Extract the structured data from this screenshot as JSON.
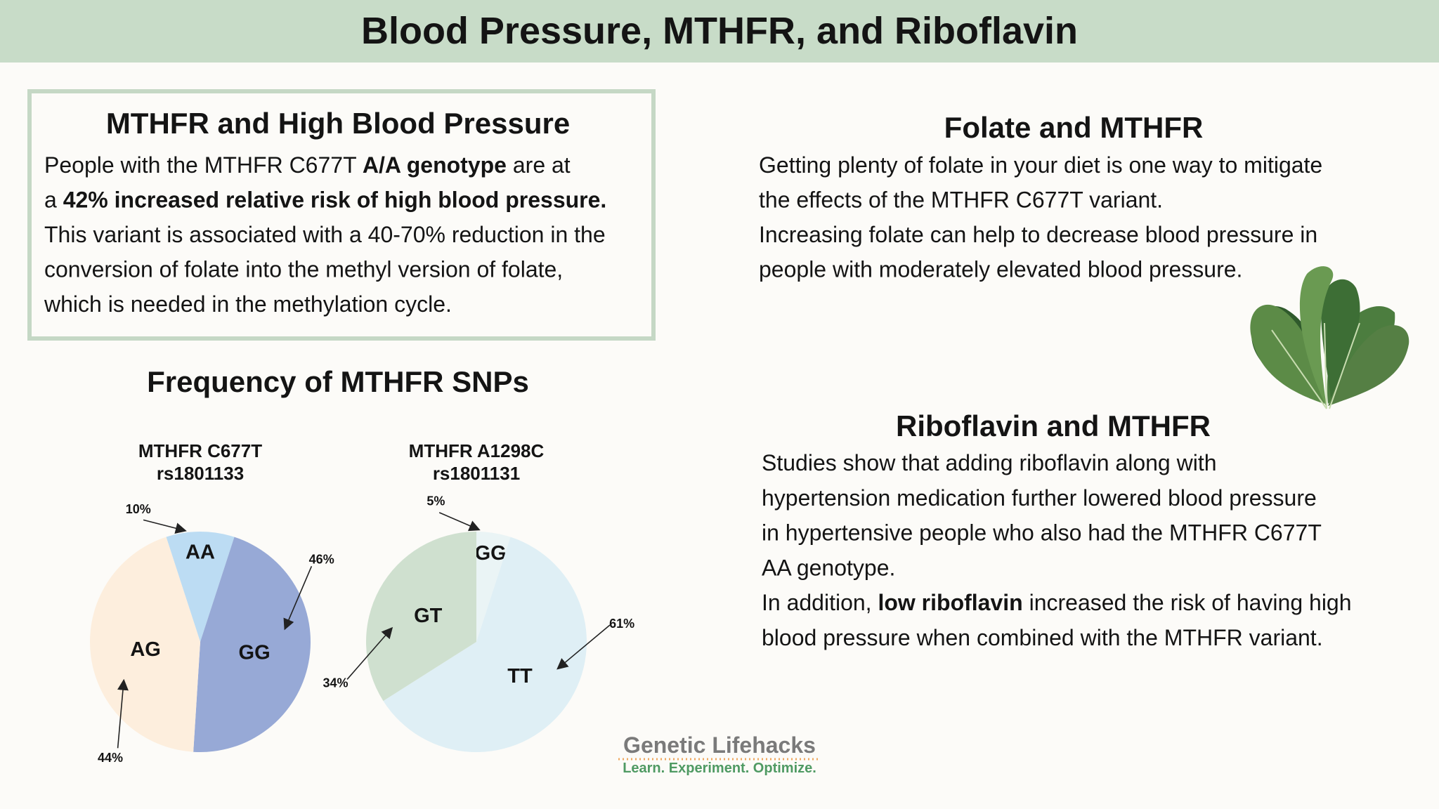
{
  "header": {
    "title": "Blood Pressure, MTHFR, and Riboflavin"
  },
  "sections": [
    {
      "title": "MTHFR and High Blood Pressure",
      "lines": [
        [
          {
            "text": "People with the MTHFR C677T "
          },
          {
            "text": "A/A genotype",
            "bold": true
          },
          {
            "text": " are at"
          }
        ],
        [
          {
            "text": "a "
          },
          {
            "text": "42% increased relative risk of high blood pressure.",
            "bold": true
          }
        ],
        [
          {
            "text": "This variant is associated with a 40-70% reduction in the"
          }
        ],
        [
          {
            "text": "conversion of folate into the methyl version of folate,"
          }
        ],
        [
          {
            "text": "which is needed in the methylation cycle."
          }
        ]
      ]
    },
    {
      "title": "Folate and MTHFR",
      "lines": [
        [
          {
            "text": "Getting plenty of folate in your diet is one way to mitigate"
          }
        ],
        [
          {
            "text": "the effects of the MTHFR C677T variant."
          }
        ],
        [
          {
            "text": "Increasing folate can help to decrease blood pressure in"
          }
        ],
        [
          {
            "text": "people with moderately elevated blood pressure."
          }
        ]
      ]
    },
    {
      "title": "Riboflavin and MTHFR",
      "lines": [
        [
          {
            "text": "Studies show that adding riboflavin along with"
          }
        ],
        [
          {
            "text": "hypertension medication further lowered blood pressure"
          }
        ],
        [
          {
            "text": "in hypertensive people who also had the MTHFR C677T"
          }
        ],
        [
          {
            "text": "AA genotype."
          }
        ],
        [
          {
            "text": "In addition, "
          },
          {
            "text": "low riboflavin",
            "bold": true
          },
          {
            "text": " increased the risk of having high"
          }
        ],
        [
          {
            "text": "blood pressure when combined with the MTHFR variant."
          }
        ]
      ]
    }
  ],
  "frequency_title": "Frequency of MTHFR SNPs",
  "chart_data": [
    {
      "type": "pie",
      "title": "MTHFR C677T",
      "subtitle": "rs1801133",
      "categories": [
        "AA",
        "GG",
        "AG"
      ],
      "values": [
        10,
        46,
        44
      ],
      "value_labels": [
        "10%",
        "46%",
        "44%"
      ],
      "colors": [
        "#bcdcf3",
        "#97a9d6",
        "#fdeedd"
      ]
    },
    {
      "type": "pie",
      "title": "MTHFR A1298C",
      "subtitle": "rs1801131",
      "categories": [
        "GG",
        "TT",
        "GT"
      ],
      "values": [
        5,
        61,
        34
      ],
      "value_labels": [
        "5%",
        "61%",
        "34%"
      ],
      "colors": [
        "#eaf4f5",
        "#dfeff5",
        "#cfe0cf"
      ]
    }
  ],
  "logo": {
    "name": "Genetic Lifehacks",
    "tagline": "Learn. Experiment. Optimize."
  }
}
